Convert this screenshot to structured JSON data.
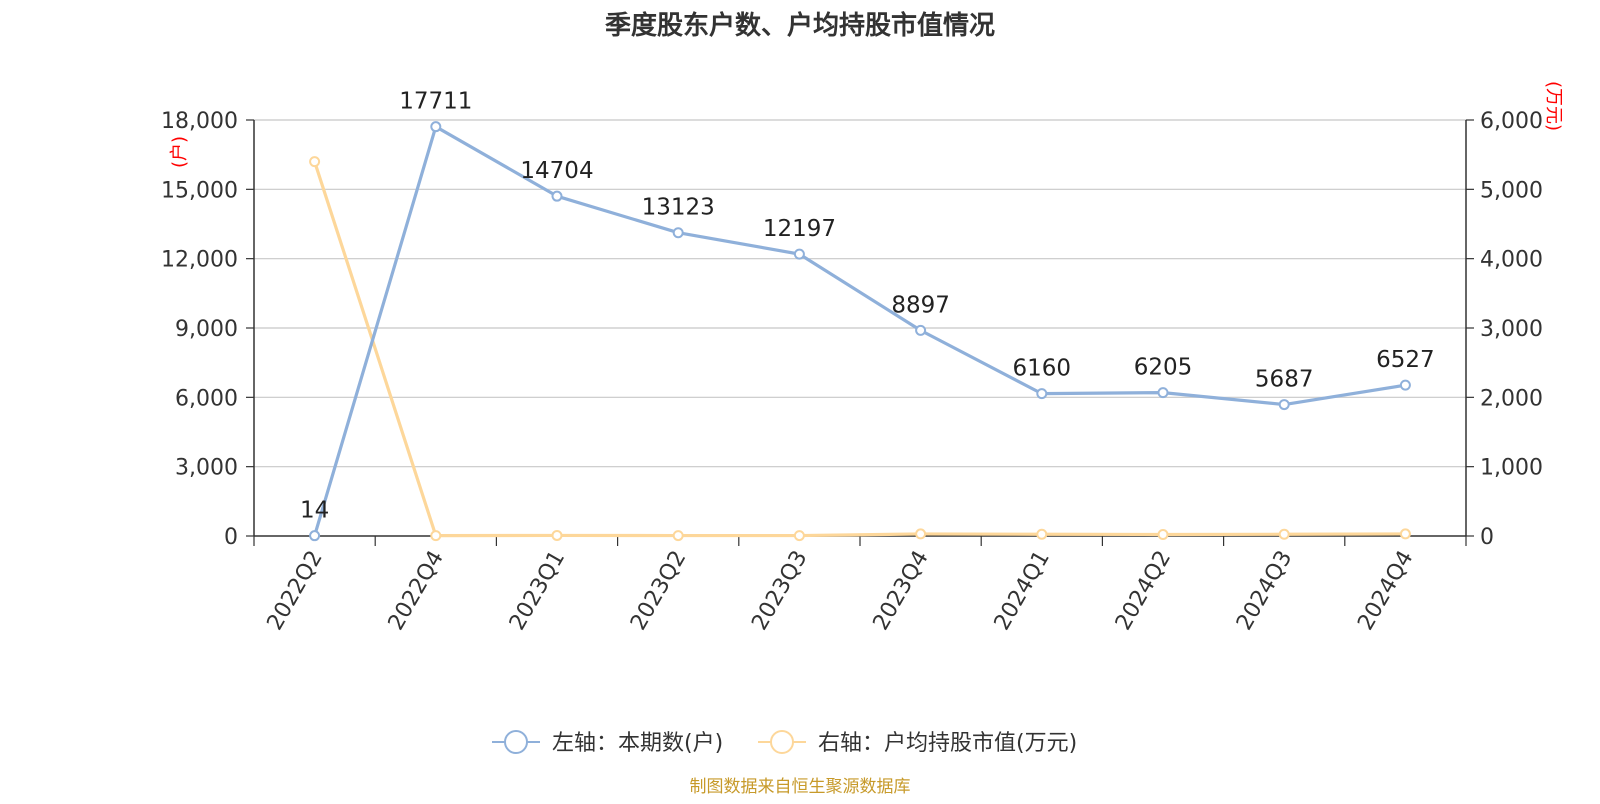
{
  "chart_data": {
    "type": "line",
    "title": "季度股东户数、户均持股市值情况",
    "categories": [
      "2022Q2",
      "2022Q4",
      "2023Q1",
      "2023Q2",
      "2023Q3",
      "2023Q4",
      "2024Q1",
      "2024Q2",
      "2024Q3",
      "2024Q4"
    ],
    "left_axis": {
      "unit_label": "(户)",
      "range": [
        0,
        18000
      ],
      "ticks": [
        0,
        3000,
        6000,
        9000,
        12000,
        15000,
        18000
      ],
      "tick_labels": [
        "0",
        "3,000",
        "6,000",
        "9,000",
        "12,000",
        "15,000",
        "18,000"
      ]
    },
    "right_axis": {
      "unit_label": "(万元)",
      "range": [
        0,
        6000
      ],
      "ticks": [
        0,
        1000,
        2000,
        3000,
        4000,
        5000,
        6000
      ],
      "tick_labels": [
        "0",
        "1,000",
        "2,000",
        "3,000",
        "4,000",
        "5,000",
        "6,000"
      ]
    },
    "series": [
      {
        "name": "左轴：本期数(户)",
        "axis": "left",
        "color": "#8fb0da",
        "values": [
          14,
          17711,
          14704,
          13123,
          12197,
          8897,
          6160,
          6205,
          5687,
          6527
        ],
        "labels": [
          "14",
          "17711",
          "14704",
          "13123",
          "12197",
          "8897",
          "6160",
          "6205",
          "5687",
          "6527"
        ]
      },
      {
        "name": "右轴：户均持股市值(万元)",
        "axis": "right",
        "color": "#fdd79a",
        "values": [
          5400,
          5,
          8,
          6,
          6,
          30,
          25,
          22,
          25,
          30
        ]
      }
    ],
    "legend_position": "bottom",
    "grid": true
  },
  "footer": {
    "source": "制图数据来自恒生聚源数据库"
  },
  "colors": {
    "unit_label": "#ff0000",
    "source": "#c79a2a",
    "grid": "#c8c8c8",
    "axis": "#333333",
    "text": "#333333"
  }
}
